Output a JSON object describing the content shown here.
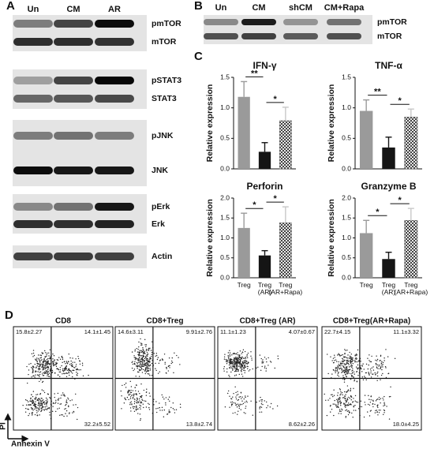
{
  "panel_labels": [
    "A",
    "B",
    "C",
    "D"
  ],
  "blot_a": {
    "lanes": [
      "Un",
      "CM",
      "AR"
    ],
    "bands": [
      "pmTOR",
      "mTOR",
      "pSTAT3",
      "STAT3",
      "pJNK",
      "JNK",
      "pErk",
      "Erk",
      "Actin"
    ]
  },
  "blot_b": {
    "lanes": [
      "Un",
      "CM",
      "shCM",
      "CM+Rapa"
    ],
    "bands": [
      "pmTOR",
      "mTOR"
    ]
  },
  "chart_data": [
    {
      "type": "bar",
      "title": "IFN-γ",
      "ylabel": "Relative expression",
      "categories": [
        null,
        null,
        null
      ],
      "values": [
        1.18,
        0.28,
        0.79
      ],
      "errors": [
        0.25,
        0.15,
        0.22
      ],
      "colors": [
        "#9a9a9a",
        "#151515",
        "#c8c8c8"
      ],
      "patterns": [
        "solid",
        "solid",
        "checker"
      ],
      "significance": [
        "**",
        "*"
      ],
      "ylim": [
        0,
        1.5
      ],
      "yticks": [
        {
          "value": 0,
          "label": "0.0"
        },
        {
          "value": 0.5,
          "label": "0.5"
        },
        {
          "value": 1,
          "label": "1.0"
        },
        {
          "value": 1.5,
          "label": "1.5"
        }
      ]
    },
    {
      "type": "bar",
      "title": "TNF-α",
      "ylabel": "Relative expression",
      "categories": [
        null,
        null,
        null
      ],
      "values": [
        0.95,
        0.35,
        0.85
      ],
      "errors": [
        0.18,
        0.17,
        0.13
      ],
      "colors": [
        "#9a9a9a",
        "#151515",
        "#c8c8c8"
      ],
      "patterns": [
        "solid",
        "solid",
        "checker"
      ],
      "significance": [
        "**",
        "*"
      ],
      "ylim": [
        0,
        1.5
      ],
      "yticks": [
        {
          "value": 0,
          "label": "0.0"
        },
        {
          "value": 0.5,
          "label": "0.5"
        },
        {
          "value": 1,
          "label": "1.0"
        },
        {
          "value": 1.5,
          "label": "1.5"
        }
      ]
    },
    {
      "type": "bar",
      "title": "Perforin",
      "ylabel": "Relative expression",
      "categories": [
        "Treg",
        "Treg (AR)",
        "Treg (AR+Rapa)"
      ],
      "values": [
        1.25,
        0.56,
        1.38
      ],
      "errors": [
        0.37,
        0.12,
        0.4
      ],
      "colors": [
        "#9a9a9a",
        "#151515",
        "#c8c8c8"
      ],
      "patterns": [
        "solid",
        "solid",
        "checker"
      ],
      "significance": [
        "*",
        "*"
      ],
      "ylim": [
        0,
        2
      ],
      "yticks": [
        {
          "value": 0,
          "label": "0.0"
        },
        {
          "value": 0.5,
          "label": "0.5"
        },
        {
          "value": 1,
          "label": "1.0"
        },
        {
          "value": 1.5,
          "label": "1.5"
        },
        {
          "value": 2,
          "label": "2.0"
        }
      ]
    },
    {
      "type": "bar",
      "title": "Granzyme B",
      "ylabel": "Relative expression",
      "categories": [
        "Treg",
        "Treg (AR)",
        "Treg (AR+Rapa)"
      ],
      "values": [
        1.12,
        0.47,
        1.44
      ],
      "errors": [
        0.32,
        0.17,
        0.3
      ],
      "colors": [
        "#9a9a9a",
        "#151515",
        "#c8c8c8"
      ],
      "patterns": [
        "solid",
        "solid",
        "checker"
      ],
      "significance": [
        "*",
        "*"
      ],
      "ylim": [
        0,
        2
      ],
      "yticks": [
        {
          "value": 0,
          "label": "0.0"
        },
        {
          "value": 0.5,
          "label": "0.5"
        },
        {
          "value": 1,
          "label": "1.0"
        },
        {
          "value": 1.5,
          "label": "1.5"
        },
        {
          "value": 2,
          "label": "2.0"
        }
      ]
    }
  ],
  "flow": {
    "y_axis_label": "PI",
    "x_axis_label": "Annexin V",
    "panels": [
      {
        "title": "CD8",
        "upper_left": "15.8±2.27",
        "upper_right": "14.1±1.45",
        "lower_right": "32.2±5.52"
      },
      {
        "title": "CD8+Treg",
        "upper_left": "14.6±3.11",
        "upper_right": "9.91±2.76",
        "lower_right": "13.8±2.74"
      },
      {
        "title": "CD8+Treg (AR)",
        "upper_left": "11.1±1.23",
        "upper_right": "4.07±0.67",
        "lower_right": "8.62±2.26"
      },
      {
        "title": "CD8+Treg(AR+Rapa)",
        "upper_left": "22.7±4.15",
        "upper_right": "11.1±3.32",
        "lower_right": "18.0±4.25"
      }
    ]
  }
}
